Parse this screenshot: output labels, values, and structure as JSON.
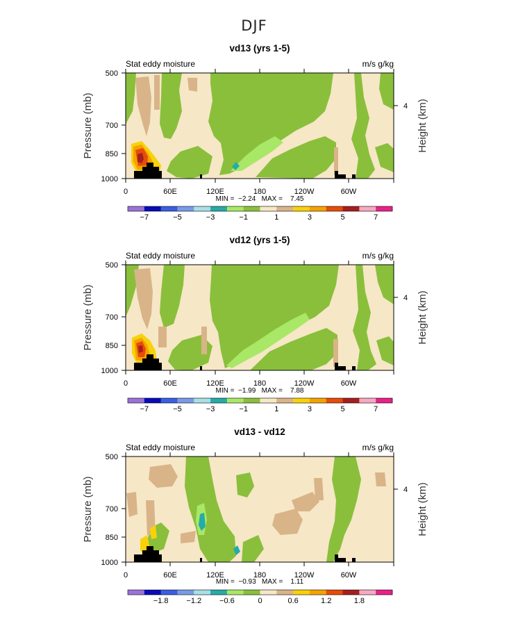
{
  "figure_title": "DJF",
  "colors": {
    "bar_palette": [
      "#9b72d9",
      "#0a0ab8",
      "#3a5fe0",
      "#7a9ae8",
      "#a9dfe6",
      "#25aba9",
      "#a8e866",
      "#8abf3c",
      "#f6e7c6",
      "#d9b489",
      "#f7d20a",
      "#f5a200",
      "#e74c08",
      "#a61f1f",
      "#f7a9c1",
      "#e8228a"
    ],
    "land": "#000000"
  },
  "chart_data": [
    {
      "type": "heatmap",
      "id": "vd13",
      "title": "vd13 (yrs 1-5)",
      "left_label": "Stat eddy moisture",
      "right_label": "m/s g/kg",
      "ylabel": "Pressure (mb)",
      "ylabel_right": "Height (km)",
      "yticks": [
        "500",
        "700",
        "850",
        "1000"
      ],
      "yticks_right": [
        "4"
      ],
      "xticks": [
        "0",
        "60E",
        "120E",
        "180",
        "120W",
        "60W"
      ],
      "stats": "MIN =  −2.24   MAX =    7.45",
      "min": -2.24,
      "max": 7.45,
      "colorbar_labels": [
        "−7",
        "−5",
        "−3",
        "−1",
        "1",
        "3",
        "5",
        "7"
      ],
      "levels": [
        -8,
        -7,
        -6,
        -5,
        -4,
        -3,
        -2,
        -1,
        0,
        1,
        2,
        3,
        4,
        5,
        6,
        7
      ]
    },
    {
      "type": "heatmap",
      "id": "vd12",
      "title": "vd12 (yrs 1-5)",
      "left_label": "Stat eddy moisture",
      "right_label": "m/s g/kg",
      "ylabel": "Pressure (mb)",
      "ylabel_right": "Height (km)",
      "yticks": [
        "500",
        "700",
        "850",
        "1000"
      ],
      "yticks_right": [
        "4"
      ],
      "xticks": [
        "0",
        "60E",
        "120E",
        "180",
        "120W",
        "60W"
      ],
      "stats": "MIN =  −1.99   MAX =    7.88",
      "min": -1.99,
      "max": 7.88,
      "colorbar_labels": [
        "−7",
        "−5",
        "−3",
        "−1",
        "1",
        "3",
        "5",
        "7"
      ],
      "levels": [
        -8,
        -7,
        -6,
        -5,
        -4,
        -3,
        -2,
        -1,
        0,
        1,
        2,
        3,
        4,
        5,
        6,
        7
      ]
    },
    {
      "type": "heatmap",
      "id": "diff",
      "title": "vd13 - vd12",
      "left_label": "Stat eddy moisture",
      "right_label": "m/s g/kg",
      "ylabel": "Pressure (mb)",
      "ylabel_right": "Height (km)",
      "yticks": [
        "500",
        "700",
        "850",
        "1000"
      ],
      "yticks_right": [
        "4"
      ],
      "xticks": [
        "0",
        "60E",
        "120E",
        "180",
        "120W",
        "60W"
      ],
      "stats": "MIN =  −0.93   MAX =    1.11",
      "min": -0.93,
      "max": 1.11,
      "colorbar_labels": [
        "−1.8",
        "−1.2",
        "−0.6",
        "0",
        "0.6",
        "1.2",
        "1.8"
      ],
      "levels": [
        -2.4,
        -2.1,
        -1.8,
        -1.5,
        -1.2,
        -0.9,
        -0.6,
        -0.3,
        0,
        0.3,
        0.6,
        0.9,
        1.2,
        1.5,
        1.8,
        2.1
      ]
    }
  ]
}
